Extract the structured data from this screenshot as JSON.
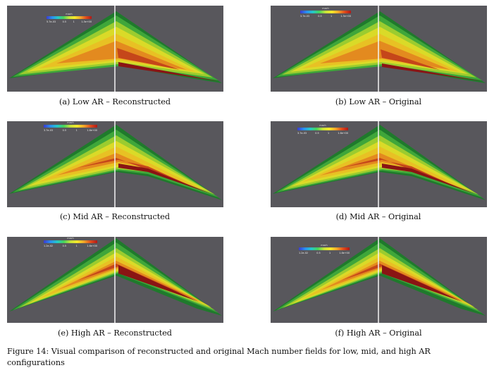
{
  "panels": [
    {
      "caption": "(a) Low AR – Reconstructed",
      "legend": {
        "title": "mach",
        "ticks": [
          "5.7e-03",
          "0.5",
          "1",
          "1.5e+00"
        ]
      }
    },
    {
      "caption": "(b) Low AR – Original",
      "legend": {
        "title": "mach",
        "ticks": [
          "3.7e-03",
          "0.5",
          "1",
          "1.5e+00"
        ]
      }
    },
    {
      "caption": "(c) Mid AR – Reconstructed",
      "legend": {
        "title": "mach",
        "ticks": [
          "3.7e-03",
          "0.5",
          "1",
          "1.6e+00"
        ]
      }
    },
    {
      "caption": "(d) Mid AR – Original",
      "legend": {
        "title": "mach",
        "ticks": [
          "3.7e-03",
          "0.5",
          "1",
          "1.6e+00"
        ]
      }
    },
    {
      "caption": "(e) High AR – Reconstructed",
      "legend": {
        "title": "mach",
        "ticks": [
          "1.2e-02",
          "0.5",
          "1",
          "1.6e+00"
        ]
      }
    },
    {
      "caption": "(f) High AR – Original",
      "legend": {
        "title": "mach",
        "ticks": [
          "1.2e-02",
          "0.5",
          "1",
          "1.6e+00"
        ]
      }
    }
  ],
  "figure_caption": "Figure 14: Visual comparison of reconstructed and original Mach number fields for low, mid, and high AR configurations"
}
